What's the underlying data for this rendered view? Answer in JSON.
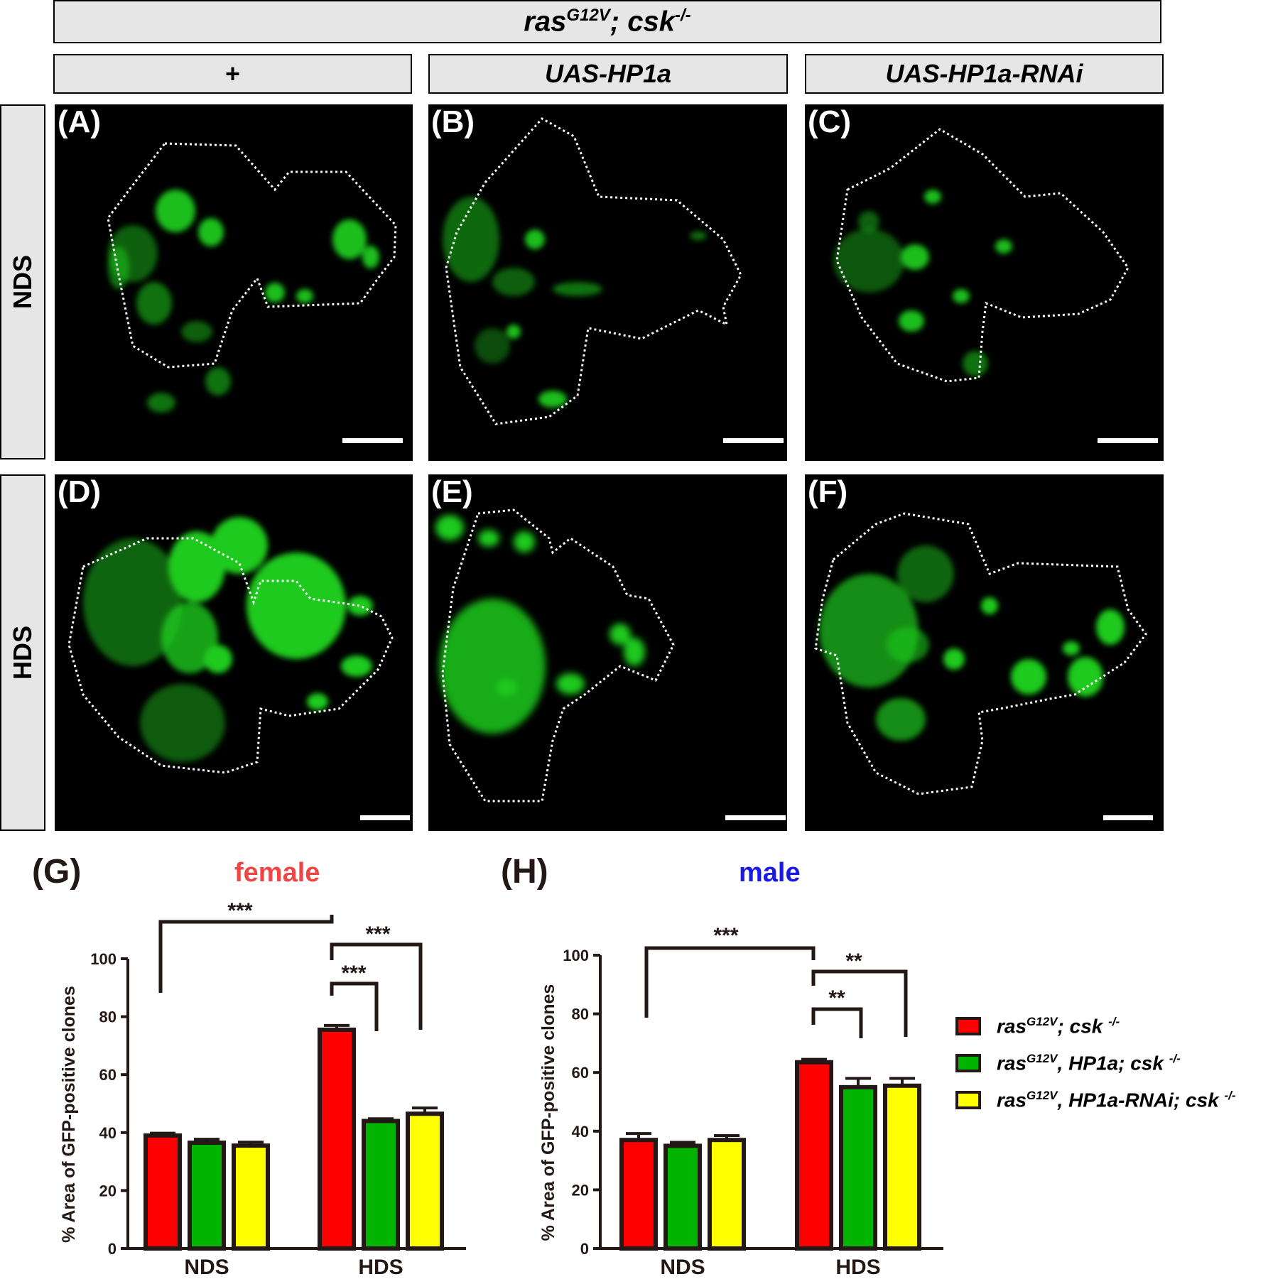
{
  "header": {
    "genotype_main": "ras",
    "genotype_main_sup": "G12V",
    "genotype_main_mid": "; csk",
    "genotype_main_sup2": "-/-",
    "columns": [
      "+",
      "UAS-HP1a",
      "UAS-HP1a-RNAi"
    ],
    "rows": [
      "NDS",
      "HDS"
    ]
  },
  "panels": [
    "(A)",
    "(B)",
    "(C)",
    "(D)",
    "(E)",
    "(F)"
  ],
  "colors": {
    "gfp": "#22e022",
    "series_red": "#ff0000",
    "series_green": "#00b400",
    "series_yellow": "#ffff00",
    "female_title": "#f04545",
    "male_title": "#1a1ae6",
    "axis": "#231815"
  },
  "chart_data": [
    {
      "type": "bar",
      "panel": "(G)",
      "title": "female",
      "ylabel": "% Area of GFP-positive clones",
      "ylim": [
        0,
        100
      ],
      "yticks": [
        0,
        20,
        40,
        60,
        80,
        100
      ],
      "categories": [
        "NDS",
        "HDS"
      ],
      "series": [
        {
          "name": "rasG12V; csk -/-",
          "values": [
            39,
            75.5
          ],
          "errors": [
            0.8,
            1.5
          ]
        },
        {
          "name": "rasG12V, HP1a; csk -/-",
          "values": [
            36.5,
            44
          ],
          "errors": [
            1.2,
            0.8
          ]
        },
        {
          "name": "rasG12V, HP1a-RNAi; csk -/-",
          "values": [
            35.5,
            46.5
          ],
          "errors": [
            1.2,
            2.0
          ]
        }
      ],
      "significance": [
        {
          "label": "***",
          "from": "NDS",
          "to": "HDS"
        },
        {
          "label": "***",
          "from": "HDS red",
          "to": "HDS yellow"
        },
        {
          "label": "***",
          "from": "HDS red",
          "to": "HDS green"
        }
      ]
    },
    {
      "type": "bar",
      "panel": "(H)",
      "title": "male",
      "ylabel": "% Area of GFP-positive clones",
      "ylim": [
        0,
        100
      ],
      "yticks": [
        0,
        20,
        40,
        60,
        80,
        100
      ],
      "categories": [
        "NDS",
        "HDS"
      ],
      "series": [
        {
          "name": "rasG12V; csk -/-",
          "values": [
            37,
            63.5
          ],
          "errors": [
            2.2,
            1.0
          ]
        },
        {
          "name": "rasG12V, HP1a; csk -/-",
          "values": [
            35,
            55
          ],
          "errors": [
            1.2,
            3.0
          ]
        },
        {
          "name": "rasG12V, HP1a-RNAi; csk -/-",
          "values": [
            37,
            55.5
          ],
          "errors": [
            1.5,
            2.5
          ]
        }
      ],
      "significance": [
        {
          "label": "***",
          "from": "NDS",
          "to": "HDS"
        },
        {
          "label": "**",
          "from": "HDS red",
          "to": "HDS yellow"
        },
        {
          "label": "**",
          "from": "HDS red",
          "to": "HDS green"
        }
      ]
    }
  ],
  "legend": [
    {
      "pre": "ras",
      "sup": "G12V",
      "post": "; csk ",
      "sup2": "-/-"
    },
    {
      "pre": "ras",
      "sup": "G12V",
      "post": ", HP1a; csk ",
      "sup2": "-/-"
    },
    {
      "pre": "ras",
      "sup": "G12V",
      "post": ", HP1a-RNAi; csk ",
      "sup2": "-/-"
    }
  ]
}
